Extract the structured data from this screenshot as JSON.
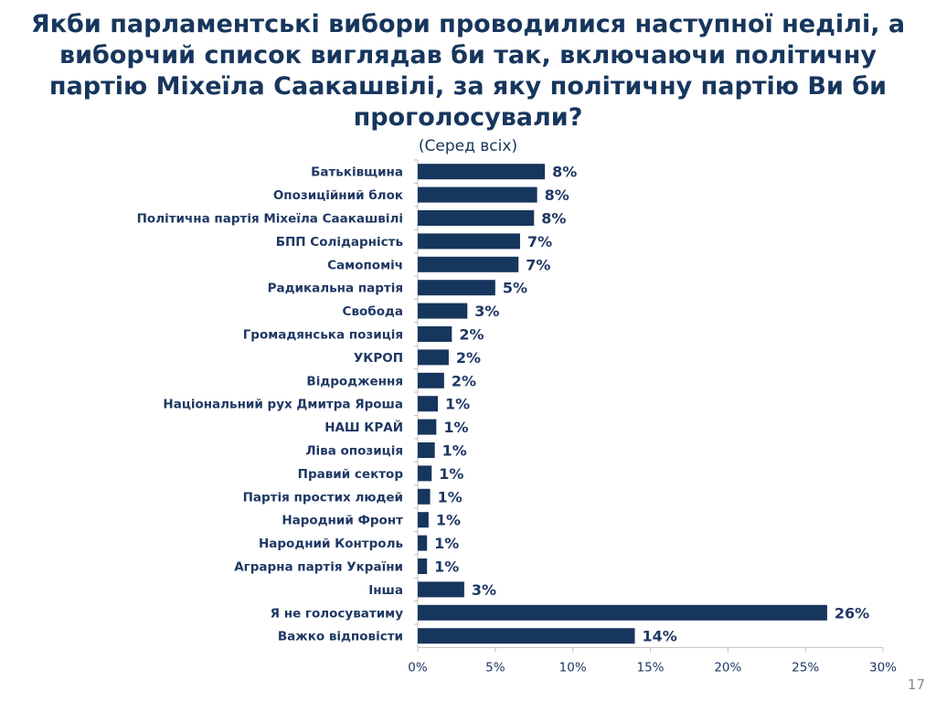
{
  "title": {
    "part1": "Якби парламентські вибори проводилися наступної неділі, а виборчий список виглядав би так, ",
    "bold": "включаючи політичну партію Міхеїла Саакашвілі",
    "part2": ", за яку політичну партію Ви би проголосували?"
  },
  "subtitle": "(Серед всіх)",
  "page_number": "17",
  "colors": {
    "bar": "#17365d",
    "text": "#1f3864",
    "axis": "#bfbfbf"
  },
  "chart_data": {
    "type": "bar",
    "orientation": "horizontal",
    "categories": [
      "Батьківщина",
      "Опозиційний блок",
      "Політична партія Міхеїла Саакашвілі",
      "БПП Солідарність",
      "Самопоміч",
      "Радикальна партія",
      "Свобода",
      "Громадянська позиція",
      "УКРОП",
      "Відродження",
      "Національний рух Дмитра Яроша",
      "НАШ КРАЙ",
      "Ліва опозиція",
      "Правий сектор",
      "Партія простих людей",
      "Народний Фронт",
      "Народний Контроль",
      "Аграрна партія України",
      "Інша",
      "Я не голосуватиму",
      "Важко відповісти"
    ],
    "values": [
      8.2,
      7.7,
      7.5,
      6.6,
      6.5,
      5.0,
      3.2,
      2.2,
      2.0,
      1.7,
      1.3,
      1.2,
      1.1,
      0.9,
      0.8,
      0.7,
      0.6,
      0.6,
      3.0,
      26.4,
      14.0
    ],
    "data_labels": [
      "8%",
      "8%",
      "8%",
      "7%",
      "7%",
      "5%",
      "3%",
      "2%",
      "2%",
      "2%",
      "1%",
      "1%",
      "1%",
      "1%",
      "1%",
      "1%",
      "1%",
      "1%",
      "3%",
      "26%",
      "14%"
    ],
    "xlim": [
      0,
      30
    ],
    "xticks": [
      0,
      5,
      10,
      15,
      20,
      25,
      30
    ],
    "xtick_labels": [
      "0%",
      "5%",
      "10%",
      "15%",
      "20%",
      "25%",
      "30%"
    ],
    "grid": false,
    "legend": false
  }
}
